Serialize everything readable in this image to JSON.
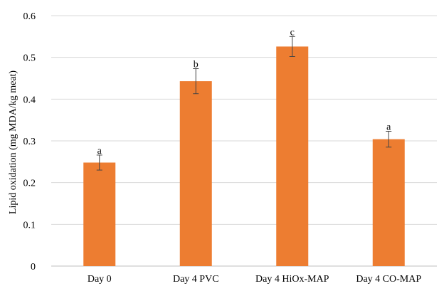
{
  "chart_data": {
    "type": "bar",
    "categories": [
      "Day 0",
      "Day 4 PVC",
      "Day 4 HiOx-MAP",
      "Day 4 CO-MAP"
    ],
    "values": [
      0.248,
      0.443,
      0.526,
      0.304
    ],
    "errors": [
      0.018,
      0.03,
      0.024,
      0.019
    ],
    "significance_labels": [
      "a",
      "b",
      "c",
      "a"
    ],
    "ylabel": "Lipid oxidation (mg MDA/kg meat)",
    "xlabel": "",
    "title": "",
    "ylim": [
      0,
      0.6
    ],
    "yticks": [
      "0",
      "0.1",
      "0.2",
      "0.3",
      "0.4",
      "0.5",
      "0.6"
    ],
    "grid": true,
    "legend": "none",
    "colors": {
      "bar": "#ED7D31",
      "error_bar": "#444444",
      "grid": "#d9d9d9"
    }
  }
}
